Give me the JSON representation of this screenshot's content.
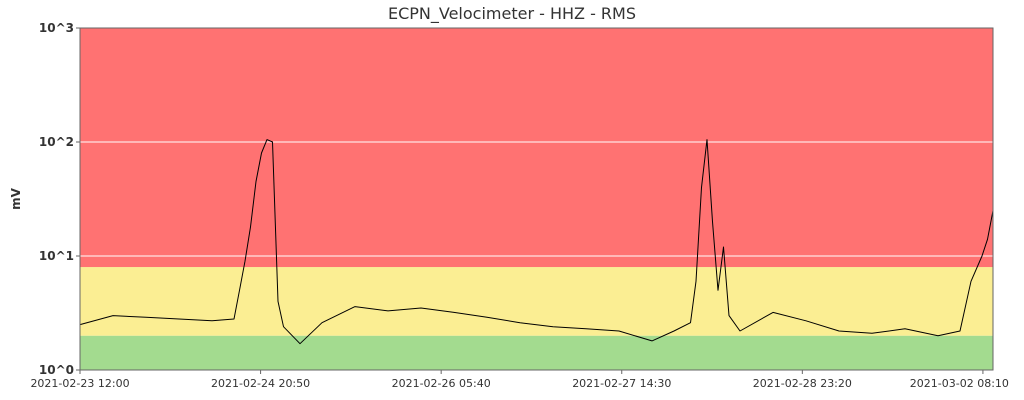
{
  "chart_data": {
    "type": "line",
    "title": "ECPN_Velocimeter - HHZ - RMS",
    "xlabel": "",
    "ylabel": "mV",
    "y_scale": "log",
    "ylim": [
      1,
      1000
    ],
    "y_ticks": [
      "10^0",
      "10^1",
      "10^2",
      "10^3"
    ],
    "x_tick_labels": [
      "2021-02-23 12:00",
      "2021-02-24 20:50",
      "2021-02-26 05:40",
      "2021-02-27 14:30",
      "2021-02-28 23:20",
      "2021-03-02 08:10"
    ],
    "xlim": [
      "2021-02-23 12:00",
      "2021-03-02 10:00"
    ],
    "grid": true,
    "legend": "none",
    "threshold_bands": [
      {
        "from": 1,
        "to": 2,
        "color": "#a3db8f"
      },
      {
        "from": 2,
        "to": 8,
        "color": "#fbee93"
      },
      {
        "from": 8,
        "to": 1000,
        "color": "#ff7272"
      }
    ],
    "series": [
      {
        "color": "#000000",
        "points": [
          [
            "2021-02-23 12:00",
            2.5
          ],
          [
            "2021-02-23 18:00",
            3.0
          ],
          [
            "2021-02-24 00:00",
            2.9
          ],
          [
            "2021-02-24 06:00",
            2.8
          ],
          [
            "2021-02-24 12:00",
            2.7
          ],
          [
            "2021-02-24 16:00",
            2.8
          ],
          [
            "2021-02-24 17:00",
            5.0
          ],
          [
            "2021-02-24 18:00",
            9.0
          ],
          [
            "2021-02-24 19:00",
            18
          ],
          [
            "2021-02-24 20:00",
            45
          ],
          [
            "2021-02-24 21:00",
            80
          ],
          [
            "2021-02-24 22:00",
            105
          ],
          [
            "2021-02-24 23:00",
            100
          ],
          [
            "2021-02-25 00:00",
            4.0
          ],
          [
            "2021-02-25 01:00",
            2.4
          ],
          [
            "2021-02-25 04:00",
            1.7
          ],
          [
            "2021-02-25 08:00",
            2.6
          ],
          [
            "2021-02-25 14:00",
            3.6
          ],
          [
            "2021-02-25 20:00",
            3.3
          ],
          [
            "2021-02-26 02:00",
            3.5
          ],
          [
            "2021-02-26 08:00",
            3.2
          ],
          [
            "2021-02-26 14:00",
            2.9
          ],
          [
            "2021-02-26 20:00",
            2.6
          ],
          [
            "2021-02-27 02:00",
            2.4
          ],
          [
            "2021-02-27 08:00",
            2.3
          ],
          [
            "2021-02-27 14:00",
            2.2
          ],
          [
            "2021-02-27 20:00",
            1.8
          ],
          [
            "2021-02-28 00:00",
            2.2
          ],
          [
            "2021-02-28 03:00",
            2.6
          ],
          [
            "2021-02-28 04:00",
            6.0
          ],
          [
            "2021-02-28 05:00",
            40
          ],
          [
            "2021-02-28 06:00",
            105
          ],
          [
            "2021-02-28 07:00",
            20
          ],
          [
            "2021-02-28 08:00",
            5.0
          ],
          [
            "2021-02-28 09:00",
            12
          ],
          [
            "2021-02-28 10:00",
            3.0
          ],
          [
            "2021-02-28 12:00",
            2.2
          ],
          [
            "2021-02-28 18:00",
            3.2
          ],
          [
            "2021-03-01 00:00",
            2.7
          ],
          [
            "2021-03-01 06:00",
            2.2
          ],
          [
            "2021-03-01 12:00",
            2.1
          ],
          [
            "2021-03-01 18:00",
            2.3
          ],
          [
            "2021-03-02 00:00",
            2.0
          ],
          [
            "2021-03-02 04:00",
            2.2
          ],
          [
            "2021-03-02 06:00",
            6.0
          ],
          [
            "2021-03-02 08:00",
            10
          ],
          [
            "2021-03-02 09:00",
            14
          ],
          [
            "2021-03-02 10:00",
            25
          ]
        ]
      }
    ]
  }
}
